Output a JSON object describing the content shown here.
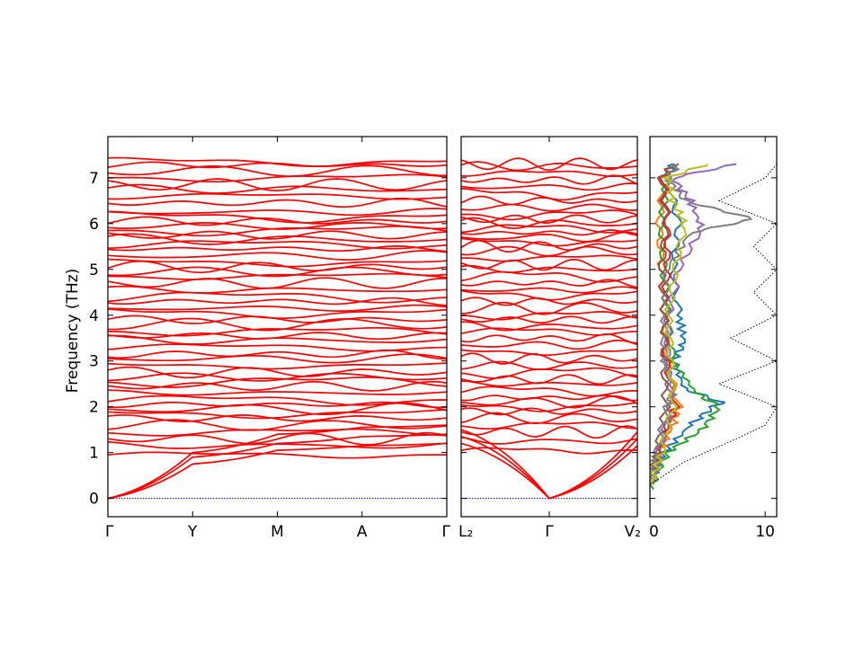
{
  "chart_data": {
    "type": "line",
    "ylabel": "Frequency (THz)",
    "ylim": [
      -0.4,
      7.9
    ],
    "yticks": [
      0,
      1,
      2,
      3,
      4,
      5,
      6,
      7
    ],
    "band_color": "#ff0000",
    "zero_line_color": "#0000cc",
    "panels": [
      {
        "name": "band-path-1",
        "xticks": [
          "Γ",
          "Y",
          "M",
          "A",
          "Γ"
        ],
        "acoustic": [
          {
            "x": [
              0,
              0.25,
              0.5,
              0.75,
              1.0
            ],
            "y": [
              0,
              0.75,
              1.05,
              1.15,
              1.2
            ]
          },
          {
            "x": [
              0,
              0.25,
              0.5,
              0.75,
              1.0
            ],
            "y": [
              0,
              0.9,
              1.2,
              1.35,
              1.4
            ]
          },
          {
            "x": [
              0,
              0.25,
              0.5,
              0.75,
              1.0
            ],
            "y": [
              0,
              1.0,
              1.4,
              1.55,
              1.6
            ]
          }
        ],
        "optical_levels": [
          0.95,
          1.15,
          1.3,
          1.45,
          1.6,
          1.75,
          1.85,
          1.95,
          2.05,
          2.15,
          2.3,
          2.45,
          2.55,
          2.65,
          2.75,
          2.9,
          3.05,
          3.15,
          3.3,
          3.45,
          3.55,
          3.65,
          3.8,
          3.9,
          4.05,
          4.15,
          4.3,
          4.4,
          4.55,
          4.7,
          4.85,
          4.95,
          5.05,
          5.15,
          5.3,
          5.45,
          5.55,
          5.65,
          5.75,
          5.85,
          5.95,
          6.05,
          6.15,
          6.25,
          6.45,
          6.6,
          6.75,
          6.85,
          7.0,
          7.15,
          7.28,
          7.35
        ]
      },
      {
        "name": "band-path-2",
        "xticks": [
          "L₂",
          "Γ",
          "V₂"
        ],
        "acoustic": [
          {
            "x": [
              0,
              0.5,
              1.0
            ],
            "y": [
              1.2,
              0,
              1.15
            ]
          },
          {
            "x": [
              0,
              0.5,
              1.0
            ],
            "y": [
              1.35,
              0,
              1.3
            ]
          },
          {
            "x": [
              0,
              0.5,
              1.0
            ],
            "y": [
              1.5,
              0,
              1.45
            ]
          }
        ],
        "optical_levels": [
          1.05,
          1.25,
          1.45,
          1.6,
          1.75,
          1.9,
          2.0,
          2.1,
          2.2,
          2.35,
          2.5,
          2.6,
          2.75,
          2.9,
          3.05,
          3.2,
          3.35,
          3.5,
          3.65,
          3.75,
          3.9,
          4.0,
          4.15,
          4.3,
          4.45,
          4.55,
          4.7,
          4.85,
          5.0,
          5.1,
          5.25,
          5.4,
          5.5,
          5.6,
          5.7,
          5.8,
          5.9,
          6.0,
          6.1,
          6.2,
          6.35,
          6.5,
          6.65,
          6.8,
          6.95,
          7.1,
          7.25,
          7.3
        ]
      }
    ],
    "dos": {
      "xticks": [
        "0",
        "10"
      ],
      "xlim": [
        0,
        11
      ],
      "series": [
        {
          "color": "#1f77b4",
          "points": [
            [
              0,
              0.3
            ],
            [
              1.2,
              1.0
            ],
            [
              3.5,
              1.6
            ],
            [
              5.5,
              2.0
            ],
            [
              6.2,
              2.1
            ],
            [
              3.0,
              2.4
            ],
            [
              2.0,
              3.0
            ],
            [
              3.0,
              3.4
            ],
            [
              2.5,
              4.0
            ],
            [
              2.0,
              5.0
            ],
            [
              2.5,
              6.0
            ],
            [
              1.5,
              7.0
            ],
            [
              2.0,
              7.3
            ]
          ]
        },
        {
          "color": "#ff7f0e",
          "points": [
            [
              0,
              0.3
            ],
            [
              0.8,
              1.0
            ],
            [
              2.0,
              1.6
            ],
            [
              2.5,
              2.0
            ],
            [
              1.5,
              3.0
            ],
            [
              1.3,
              4.0
            ],
            [
              1.0,
              5.0
            ],
            [
              0.8,
              6.0
            ],
            [
              1.2,
              7.0
            ],
            [
              2.0,
              7.3
            ]
          ]
        },
        {
          "color": "#2ca02c",
          "points": [
            [
              0,
              0.2
            ],
            [
              1.5,
              1.0
            ],
            [
              4.5,
              1.5
            ],
            [
              6.0,
              2.0
            ],
            [
              4.0,
              2.3
            ],
            [
              2.0,
              3.0
            ],
            [
              1.5,
              4.0
            ],
            [
              1.2,
              5.0
            ],
            [
              1.0,
              6.0
            ],
            [
              1.5,
              7.0
            ],
            [
              2.5,
              7.3
            ]
          ]
        },
        {
          "color": "#d62728",
          "points": [
            [
              0,
              0.3
            ],
            [
              0.7,
              1.0
            ],
            [
              1.8,
              1.7
            ],
            [
              2.2,
              2.0
            ],
            [
              1.4,
              3.0
            ],
            [
              1.2,
              4.0
            ],
            [
              1.5,
              5.0
            ],
            [
              1.5,
              6.0
            ],
            [
              1.2,
              7.0
            ],
            [
              2.0,
              7.3
            ]
          ]
        },
        {
          "color": "#9467bd",
          "points": [
            [
              0,
              0.3
            ],
            [
              0.8,
              1.0
            ],
            [
              1.8,
              2.0
            ],
            [
              1.5,
              3.0
            ],
            [
              1.6,
              4.0
            ],
            [
              2.5,
              5.0
            ],
            [
              4.5,
              5.9
            ],
            [
              3.5,
              6.5
            ],
            [
              2.0,
              7.0
            ],
            [
              7.5,
              7.3
            ]
          ]
        },
        {
          "color": "#8c564b",
          "points": [
            [
              0,
              0.3
            ],
            [
              0.6,
              1.0
            ],
            [
              1.4,
              2.0
            ],
            [
              1.2,
              3.0
            ],
            [
              1.3,
              4.0
            ],
            [
              1.0,
              5.0
            ],
            [
              1.4,
              6.0
            ],
            [
              1.0,
              7.0
            ],
            [
              2.0,
              7.3
            ]
          ]
        },
        {
          "color": "#7f7f7f",
          "points": [
            [
              0,
              0.3
            ],
            [
              0.6,
              1.0
            ],
            [
              1.5,
              2.0
            ],
            [
              2.0,
              2.3
            ],
            [
              1.2,
              3.0
            ],
            [
              1.3,
              4.0
            ],
            [
              1.5,
              5.0
            ],
            [
              3.5,
              5.8
            ],
            [
              9.0,
              6.1
            ],
            [
              3.0,
              6.5
            ],
            [
              1.5,
              7.0
            ],
            [
              2.5,
              7.3
            ]
          ]
        },
        {
          "color": "#bcbd22",
          "points": [
            [
              0,
              0.3
            ],
            [
              1.0,
              1.0
            ],
            [
              2.0,
              2.0
            ],
            [
              1.8,
              3.0
            ],
            [
              1.6,
              4.0
            ],
            [
              2.2,
              5.0
            ],
            [
              3.0,
              6.0
            ],
            [
              2.0,
              6.5
            ],
            [
              1.5,
              7.0
            ],
            [
              5.0,
              7.3
            ]
          ]
        },
        {
          "color": "#000000",
          "dotted": true,
          "points": [
            [
              0,
              0.3
            ],
            [
              3.0,
              0.8
            ],
            [
              7.5,
              1.3
            ],
            [
              10.0,
              1.6
            ],
            [
              11.0,
              2.0
            ],
            [
              6.0,
              2.5
            ],
            [
              11.0,
              3.0
            ],
            [
              7.0,
              3.5
            ],
            [
              11.0,
              4.0
            ],
            [
              9.0,
              4.5
            ],
            [
              11.0,
              5.0
            ],
            [
              9.0,
              5.5
            ],
            [
              11.0,
              6.0
            ],
            [
              6.0,
              6.5
            ],
            [
              10.0,
              7.0
            ],
            [
              11.0,
              7.3
            ]
          ]
        }
      ]
    }
  }
}
